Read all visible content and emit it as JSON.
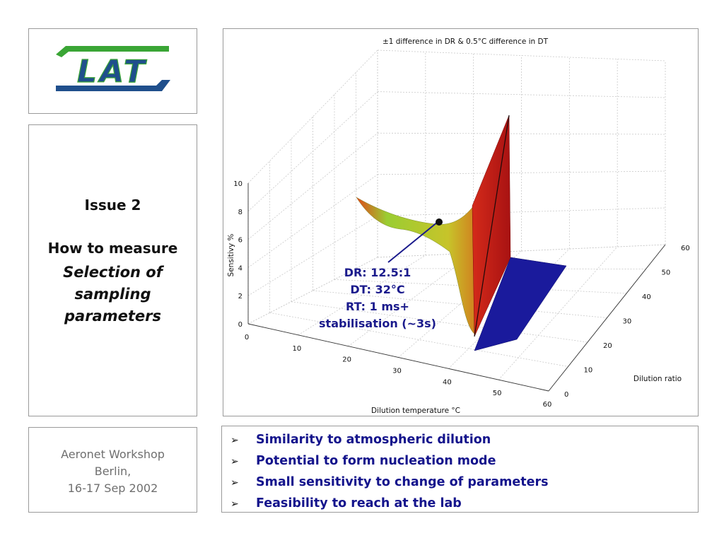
{
  "logo": {
    "text": "LAT",
    "colors": {
      "green": "#3aa535",
      "blue": "#1f4f8c"
    }
  },
  "title": {
    "issue": "Issue 2",
    "heading": "How to measure",
    "subtitle_lines": [
      "Selection of",
      "sampling",
      "parameters"
    ]
  },
  "footer": {
    "lines": [
      "Aeronet Workshop",
      "Berlin,",
      "16-17 Sep 2002"
    ]
  },
  "chart_data": {
    "type": "surface",
    "title": "±1 difference in DR & 0.5°C difference in DT",
    "xlabel": "Dilution temperature °C",
    "ylabel": "Dilution ratio",
    "zlabel": "Sensitivy %",
    "x_ticks": [
      "0",
      "10",
      "20",
      "30",
      "40",
      "50",
      "60"
    ],
    "y_ticks": [
      "0",
      "10",
      "20",
      "30",
      "40",
      "50",
      "60"
    ],
    "z_ticks": [
      "0",
      "2",
      "4",
      "6",
      "8",
      "10"
    ],
    "xlim": [
      0,
      60
    ],
    "ylim": [
      0,
      60
    ],
    "zlim": [
      0,
      10
    ],
    "grid": true,
    "annotation": {
      "marker": {
        "x": 32,
        "y": 12.5
      },
      "lines": [
        "DR: 12.5:1",
        "DT: 32°C",
        "RT: 1 ms+",
        "stabilisation (~3s)"
      ],
      "color": "#1a1a8c"
    },
    "colors": {
      "surface_low": "#8cc63f",
      "surface_high": "#e03a1a",
      "wall": "#c41a1a",
      "floor": "#1a1a9c"
    }
  },
  "bullets": {
    "marker": "➢",
    "items": [
      "Similarity to atmospheric dilution",
      "Potential to form nucleation mode",
      "Small sensitivity to change of parameters",
      "Feasibility to reach at the lab"
    ]
  }
}
